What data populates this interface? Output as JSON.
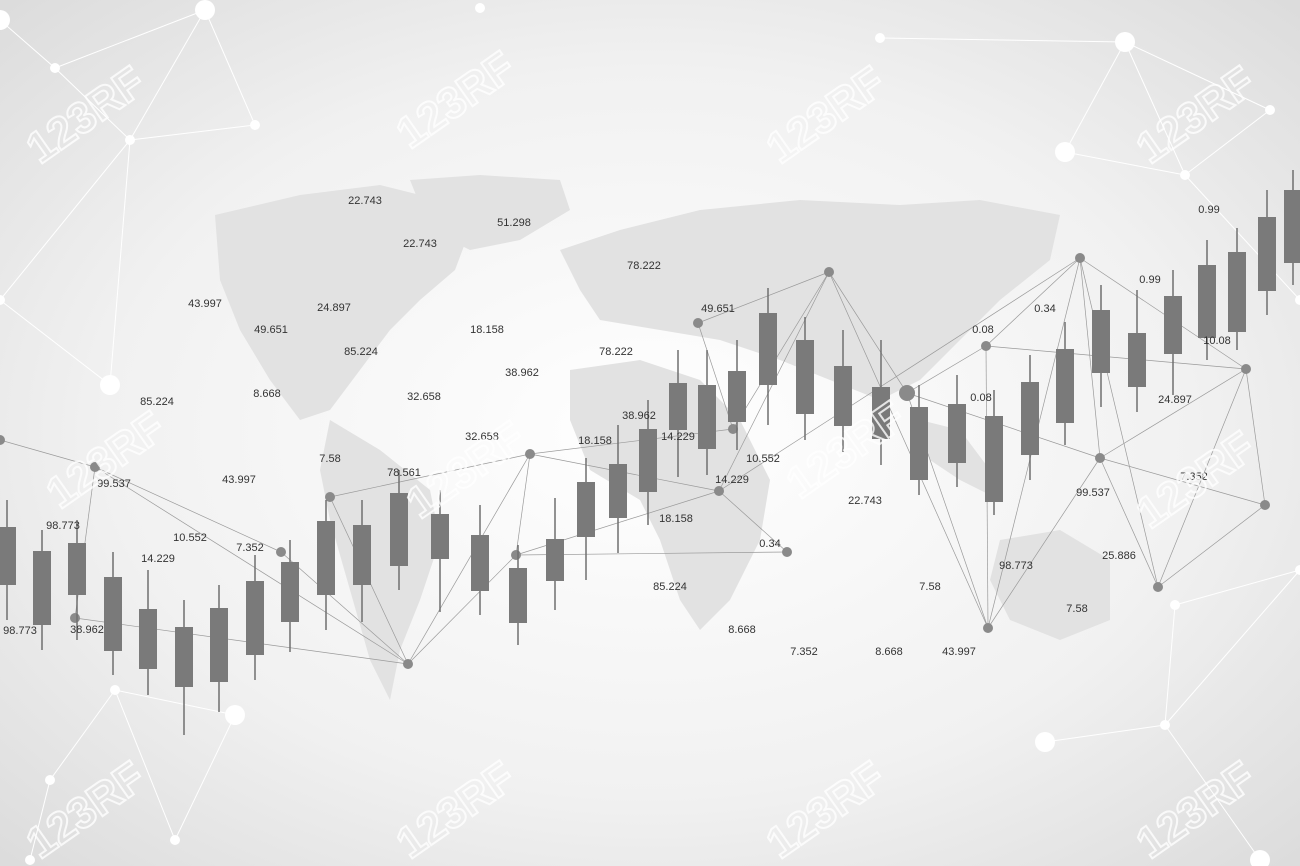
{
  "watermark": "123RF",
  "labels": [
    "22.743",
    "51.298",
    "22.743",
    "78.222",
    "43.997",
    "24.897",
    "49.651",
    "49.651",
    "18.158",
    "0.34",
    "0.08",
    "85.224",
    "78.222",
    "38.962",
    "0.99",
    "0.99",
    "10.08",
    "85.224",
    "8.668",
    "32.658",
    "0.08",
    "24.897",
    "38.962",
    "32.658",
    "14.229",
    "18.158",
    "10.552",
    "7.58",
    "78.561",
    "43.997",
    "99.537",
    "14.229",
    "7.352",
    "22.743",
    "99.537",
    "98.773",
    "10.552",
    "18.158",
    "7.352",
    "0.34",
    "14.229",
    "25.886",
    "98.773",
    "85.224",
    "7.58",
    "7.58",
    "98.773",
    "38.962",
    "8.668",
    "7.352",
    "8.668",
    "43.997"
  ]
}
